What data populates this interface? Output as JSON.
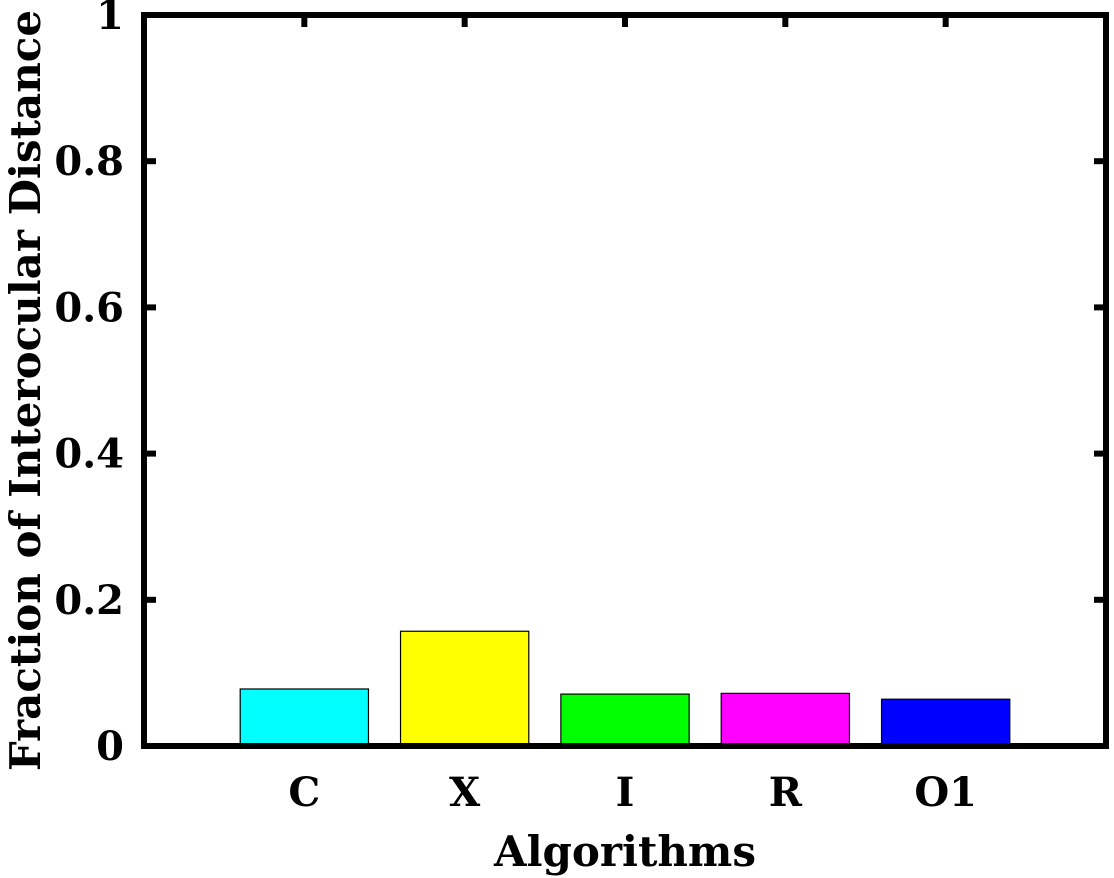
{
  "chart_data": {
    "type": "bar",
    "title": "",
    "xlabel": "Algorithms",
    "ylabel": "Fraction of Interocular Distance",
    "categories": [
      "C",
      "X",
      "I",
      "R",
      "O1"
    ],
    "values": [
      0.078,
      0.157,
      0.071,
      0.072,
      0.064
    ],
    "colors": [
      "#00ffff",
      "#ffff00",
      "#00ff00",
      "#ff00ff",
      "#0000ff"
    ],
    "ylim": [
      0,
      1
    ],
    "yticks": [
      0,
      0.2,
      0.4,
      0.6,
      0.8,
      1
    ],
    "ytick_labels": [
      "0",
      "0.2",
      "0.4",
      "0.6",
      "0.8",
      "1"
    ],
    "grid": false,
    "legend": "none"
  }
}
